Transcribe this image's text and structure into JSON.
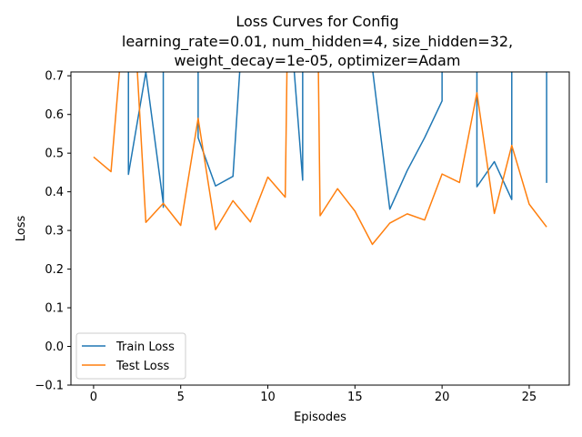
{
  "chart_data": {
    "type": "line",
    "title_lines": [
      "Loss Curves for Config",
      "learning_rate=0.01, num_hidden=4, size_hidden=32,",
      "weight_decay=1e-05, optimizer=Adam"
    ],
    "xlabel": "Episodes",
    "ylabel": "Loss",
    "xlim": [
      -1.3,
      27.3
    ],
    "ylim": [
      -0.1,
      0.71
    ],
    "xticks": [
      0,
      5,
      10,
      15,
      20,
      25
    ],
    "xtick_labels": [
      "0",
      "5",
      "10",
      "15",
      "20",
      "25"
    ],
    "yticks": [
      -0.1,
      0.0,
      0.1,
      0.2,
      0.3,
      0.4,
      0.5,
      0.6,
      0.7
    ],
    "ytick_labels": [
      "−0.1",
      "0.0",
      "0.1",
      "0.2",
      "0.3",
      "0.4",
      "0.5",
      "0.6",
      "0.7"
    ],
    "grid": false,
    "legend_position": "lower-left",
    "series": [
      {
        "name": "Train Loss",
        "color": "#1f77b4",
        "x": [
          2,
          2,
          3,
          4,
          4,
          4,
          6,
          6,
          7,
          8,
          8.4,
          11.5,
          12,
          12,
          16,
          17,
          18,
          19,
          20,
          20,
          22,
          22,
          23,
          24,
          24,
          26,
          26
        ],
        "y": [
          0.72,
          0.445,
          0.71,
          0.37,
          0.36,
          0.72,
          0.72,
          0.54,
          0.415,
          0.44,
          0.72,
          0.72,
          0.43,
          0.72,
          0.72,
          0.355,
          0.455,
          0.54,
          0.635,
          0.72,
          0.72,
          0.413,
          0.478,
          0.38,
          0.72,
          0.72,
          0.423
        ]
      },
      {
        "name": "Test Loss",
        "color": "#ff7f0e",
        "x": [
          0,
          1,
          1.5,
          1.8,
          2.5,
          3,
          4,
          5,
          6,
          7,
          8,
          9,
          10,
          11,
          11.1,
          12.9,
          13,
          14,
          15,
          16,
          17,
          18,
          19,
          20,
          21,
          22,
          23,
          24,
          25,
          26
        ],
        "y": [
          0.49,
          0.452,
          0.72,
          0.72,
          0.72,
          0.321,
          0.37,
          0.313,
          0.59,
          0.302,
          0.377,
          0.322,
          0.438,
          0.386,
          0.72,
          0.72,
          0.338,
          0.408,
          0.35,
          0.264,
          0.319,
          0.343,
          0.327,
          0.446,
          0.424,
          0.656,
          0.344,
          0.52,
          0.368,
          0.309
        ]
      }
    ]
  }
}
